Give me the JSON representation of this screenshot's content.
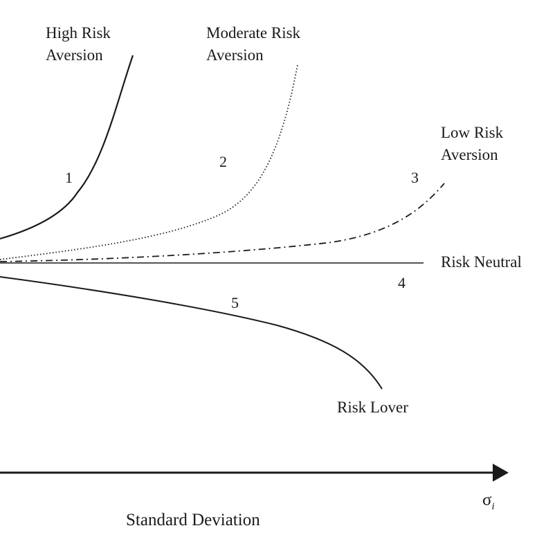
{
  "diagram": {
    "curves": [
      {
        "number": "1",
        "label_line1": "High Risk",
        "label_line2": "Aversion",
        "style": "solid"
      },
      {
        "number": "2",
        "label_line1": "Moderate Risk",
        "label_line2": "Aversion",
        "style": "dotted"
      },
      {
        "number": "3",
        "label_line1": "Low Risk",
        "label_line2": "Aversion",
        "style": "dash-dot"
      },
      {
        "number": "4",
        "label": "Risk Neutral",
        "style": "solid"
      },
      {
        "number": "5",
        "label": "Risk Lover",
        "style": "solid"
      }
    ],
    "x_axis": {
      "symbol": "σ",
      "subscript": "i",
      "title": "Standard Deviation"
    },
    "colors": {
      "ink": "#1a1a1a"
    }
  }
}
